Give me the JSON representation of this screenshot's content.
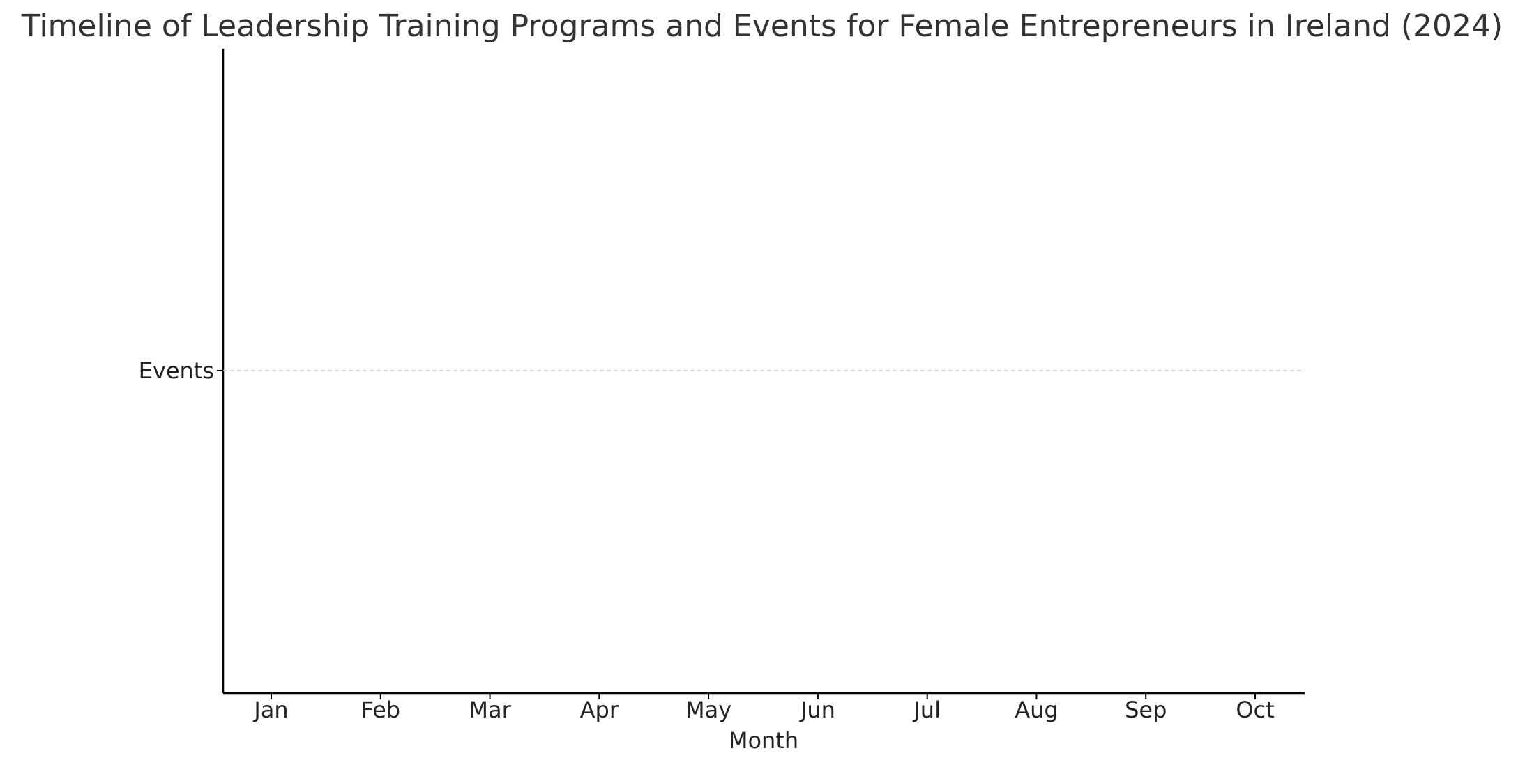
{
  "chart_data": {
    "type": "scatter",
    "title": "Timeline of Leadership Training Programs and Events for Female Entrepreneurs in Ireland (2024)",
    "xlabel": "Month",
    "ylabel": "",
    "x_categories": [
      "Jan",
      "Feb",
      "Mar",
      "Apr",
      "May",
      "Jun",
      "Jul",
      "Aug",
      "Sep",
      "Oct"
    ],
    "y_categories": [
      "Events"
    ],
    "series": [],
    "grid": {
      "y": true,
      "x": false,
      "style": "dashed",
      "color": "#cccccc"
    },
    "legend": "none",
    "colors": {
      "axis": "#000000",
      "text": "#222222",
      "title": "#333333",
      "grid": "#cccccc"
    }
  }
}
